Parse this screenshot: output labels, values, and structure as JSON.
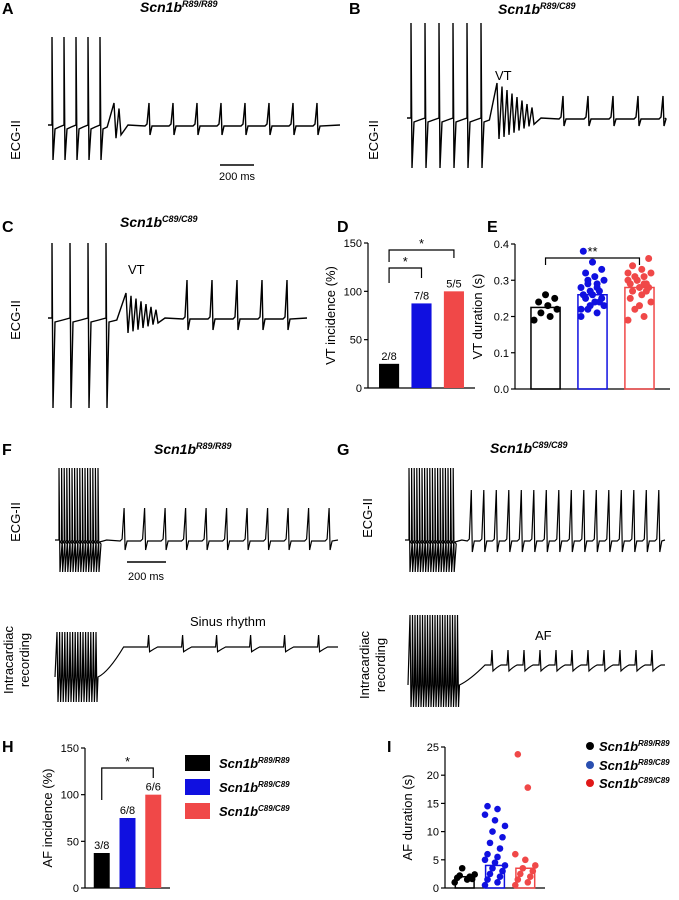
{
  "panels": {
    "A": {
      "label": "A",
      "title": "Scn1b",
      "sup": "R89/R89",
      "ylabel": "ECG-II",
      "scale": "200 ms"
    },
    "B": {
      "label": "B",
      "title": "Scn1b",
      "sup": "R89/C89",
      "ylabel": "ECG-II",
      "annot": "VT"
    },
    "C": {
      "label": "C",
      "title": "Scn1b",
      "sup": "C89/C89",
      "ylabel": "ECG-II",
      "annot": "VT"
    },
    "D": {
      "label": "D"
    },
    "E": {
      "label": "E"
    },
    "F": {
      "label": "F",
      "title": "Scn1b",
      "sup": "R89/R89",
      "ylabel1": "ECG-II",
      "ylabel2a": "Intracardiac",
      "ylabel2b": "recording",
      "annot": "Sinus rhythm",
      "scale": "200 ms"
    },
    "G": {
      "label": "G",
      "title": "Scn1b",
      "sup": "C89/C89",
      "ylabel1": "ECG-II",
      "ylabel2a": "Intracardiac",
      "ylabel2b": "recording",
      "annot": "AF"
    },
    "H": {
      "label": "H"
    },
    "I": {
      "label": "I"
    }
  },
  "legend": {
    "items": [
      {
        "name": "Scn1b",
        "sup": "R89/R89",
        "color": "#000000"
      },
      {
        "name": "Scn1b",
        "sup": "R89/C89",
        "color": "#1010e0"
      },
      {
        "name": "Scn1b",
        "sup": "C89/C89",
        "color": "#f04848"
      }
    ]
  },
  "chart_data": [
    {
      "id": "D",
      "type": "bar",
      "ylabel": "VT incidence (%)",
      "ylim": [
        0,
        150
      ],
      "yticks": [
        0,
        50,
        100,
        150
      ],
      "values": [
        25,
        87.5,
        100
      ],
      "labels": [
        "2/8",
        "7/8",
        "5/5"
      ],
      "colors": [
        "#000000",
        "#1010e0",
        "#f04848"
      ],
      "sig": [
        "*",
        "*"
      ]
    },
    {
      "id": "E",
      "type": "bar",
      "ylabel": "VT duration (s)",
      "ylim": [
        0,
        0.4
      ],
      "yticks": [
        "0.0",
        "0.1",
        "0.2",
        "0.3",
        "0.4"
      ],
      "values": [
        0.225,
        0.26,
        0.28
      ],
      "colors": [
        "#000000",
        "#1010e0",
        "#f04848"
      ],
      "filled": false,
      "sig": [
        "**"
      ]
    },
    {
      "id": "H",
      "type": "bar",
      "ylabel": "AF incidence (%)",
      "ylim": [
        0,
        150
      ],
      "yticks": [
        0,
        50,
        100,
        150
      ],
      "values": [
        37.5,
        75,
        100
      ],
      "labels": [
        "3/8",
        "6/8",
        "6/6"
      ],
      "colors": [
        "#000000",
        "#1010e0",
        "#f04848"
      ],
      "sig": [
        "*"
      ]
    },
    {
      "id": "I",
      "type": "bar",
      "ylabel": "AF duration (s)",
      "ylim": [
        0,
        25
      ],
      "yticks": [
        0,
        5,
        10,
        15,
        20,
        25
      ],
      "values": [
        2,
        4,
        3.5
      ],
      "colors": [
        "#000000",
        "#1010e0",
        "#f04848"
      ],
      "filled": false,
      "points": [
        [
          1.0,
          1.5,
          1.8,
          2.0,
          2.2,
          1.6,
          3.5,
          2.4
        ],
        [
          0.5,
          1,
          1.5,
          2,
          2.5,
          3,
          3.5,
          4,
          4.5,
          5,
          5.5,
          6,
          7,
          8,
          9,
          10,
          11,
          12,
          13,
          14,
          14.5
        ],
        [
          0.5,
          1,
          1.5,
          2,
          2.5,
          3,
          3.5,
          4,
          5,
          6,
          17.8,
          23.7
        ]
      ]
    }
  ]
}
